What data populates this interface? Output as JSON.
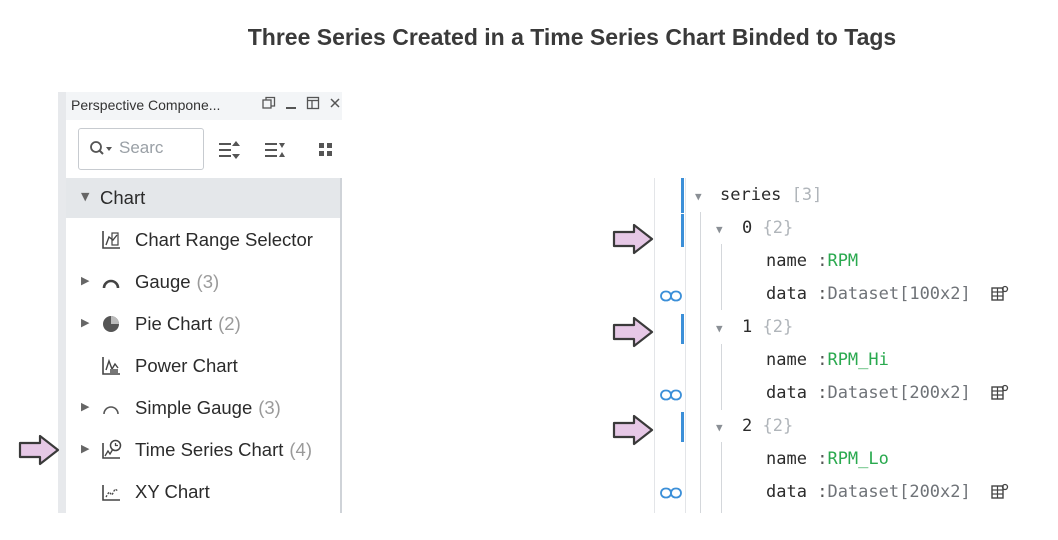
{
  "title": "Three Series Created in a Time Series Chart Binded to Tags",
  "panel": {
    "title": "Perspective Compone...",
    "header_icons": [
      "restore-icon",
      "minimize-icon",
      "maximize-icon",
      "close-icon"
    ],
    "search_placeholder": "Searc",
    "tree": {
      "header": "Chart",
      "items": [
        {
          "label": "Chart Range Selector",
          "count": "",
          "icon": "chart-range-icon",
          "expandable": false
        },
        {
          "label": "Gauge",
          "count": "(3)",
          "icon": "gauge-icon",
          "expandable": true
        },
        {
          "label": "Pie Chart",
          "count": "(2)",
          "icon": "pie-icon",
          "expandable": true
        },
        {
          "label": "Power Chart",
          "count": "",
          "icon": "power-chart-icon",
          "expandable": false
        },
        {
          "label": "Simple Gauge",
          "count": "(3)",
          "icon": "simple-gauge-icon",
          "expandable": true
        },
        {
          "label": "Time Series Chart",
          "count": "(4)",
          "icon": "time-series-icon",
          "expandable": true
        },
        {
          "label": "XY Chart",
          "count": "",
          "icon": "xy-chart-icon",
          "expandable": false
        }
      ]
    }
  },
  "props": {
    "root": {
      "key": "series",
      "meta": "[3]"
    },
    "entries": [
      {
        "index": "0",
        "meta": "{2}",
        "name": "RPM",
        "data": "Dataset[100x2]"
      },
      {
        "index": "1",
        "meta": "{2}",
        "name": "RPM_Hi",
        "data": "Dataset[200x2]"
      },
      {
        "index": "2",
        "meta": "{2}",
        "name": "RPM_Lo",
        "data": "Dataset[200x2]"
      }
    ],
    "name_key": "name",
    "data_key": "data",
    "separator": ":"
  },
  "colors": {
    "arrow_fill": "#e6c8e6",
    "link": "#3b8fd8",
    "value": "#2aa94f"
  }
}
